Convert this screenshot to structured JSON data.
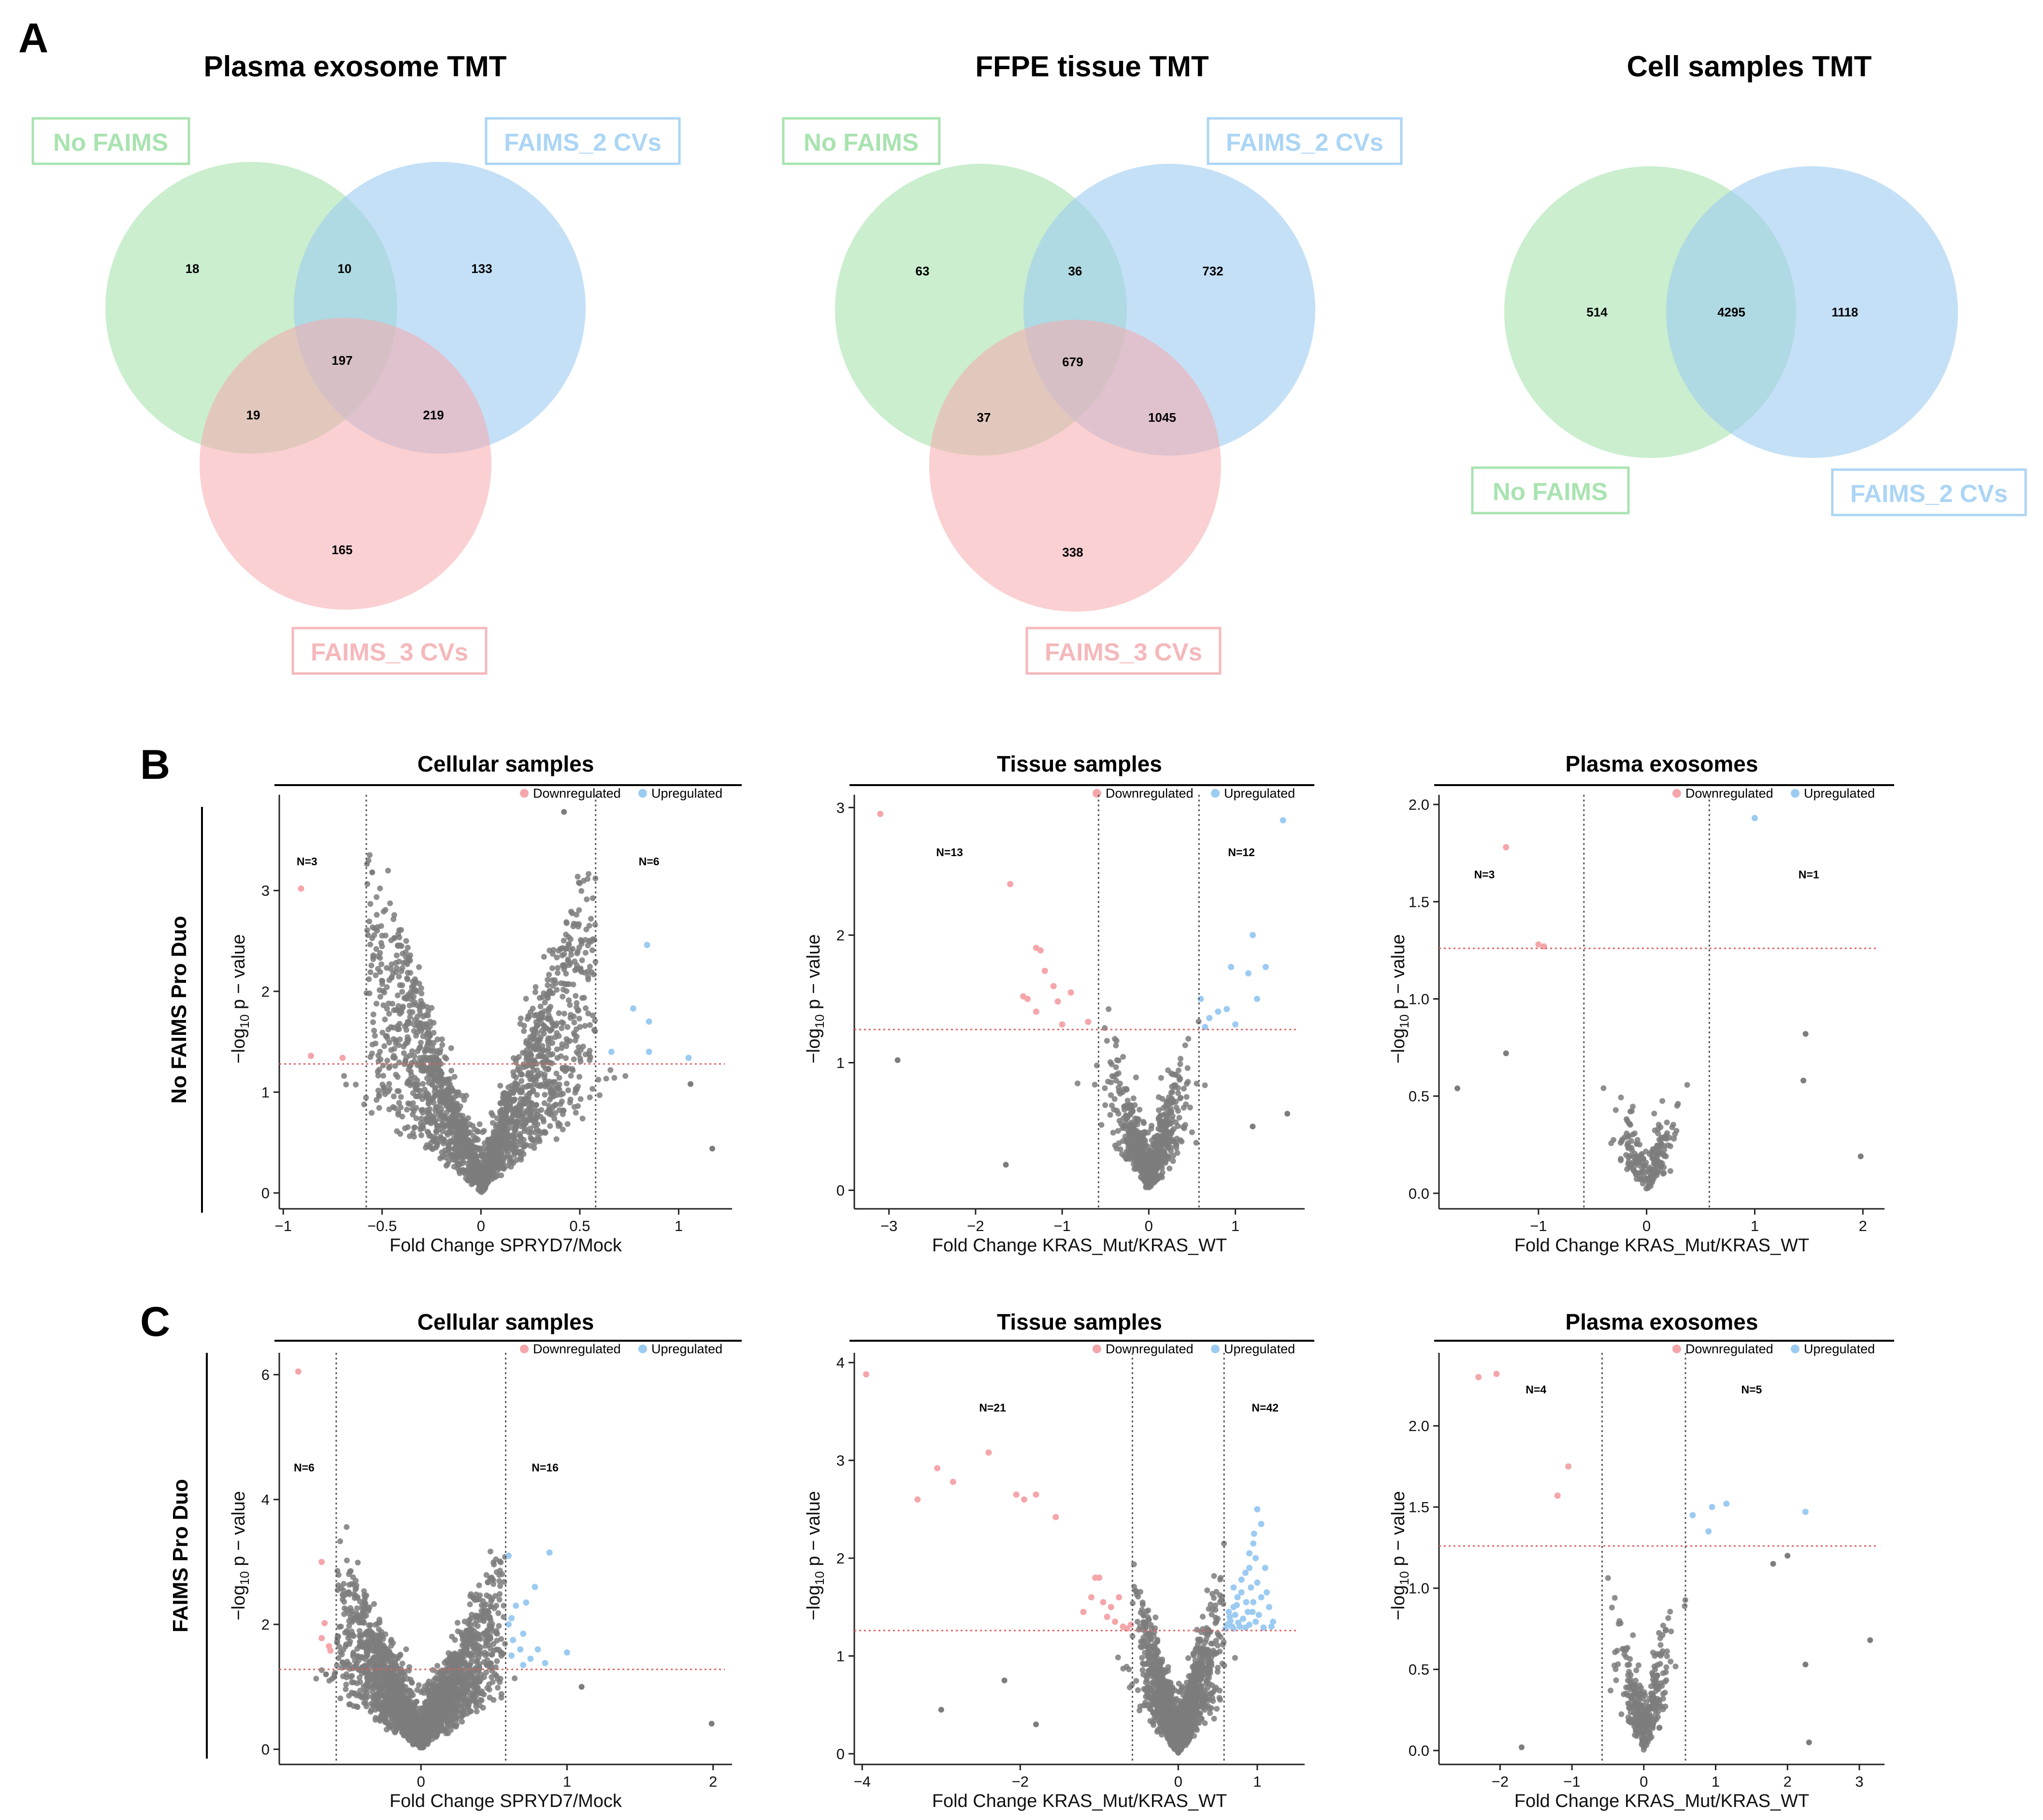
{
  "panels": {
    "A": "A",
    "B": "B",
    "C": "C"
  },
  "venn": [
    {
      "title": "Plasma exosome TMT",
      "set_labels": [
        "No FAIMS",
        "FAIMS_2 CVs",
        "FAIMS_3 CVs"
      ],
      "regions": {
        "only_a": "18",
        "ab": "10",
        "only_b": "133",
        "abc": "197",
        "ac": "19",
        "bc": "219",
        "only_c": "165"
      }
    },
    {
      "title": "FFPE tissue TMT",
      "set_labels": [
        "No FAIMS",
        "FAIMS_2 CVs",
        "FAIMS_3 CVs"
      ],
      "regions": {
        "only_a": "63",
        "ab": "36",
        "only_b": "732",
        "abc": "679",
        "ac": "37",
        "bc": "1045",
        "only_c": "338"
      }
    },
    {
      "title": "Cell samples TMT",
      "set_labels": [
        "No FAIMS",
        "FAIMS_2 CVs"
      ],
      "regions": {
        "only_a": "514",
        "ab": "4295",
        "only_b": "1118"
      }
    }
  ],
  "venn_colors": {
    "a": "#9ee0a6",
    "b": "#9ccbf2",
    "c": "#f6a9ad",
    "a_label": "#a9e3b0",
    "b_label": "#acd5f5",
    "c_label": "#f5b8bb"
  },
  "row_labels": {
    "B": "No FAIMS Pro Duo",
    "C": "FAIMS Pro Duo"
  },
  "legend": {
    "down": "Downregulated",
    "up": "Upregulated"
  },
  "y_axis_label": {
    "pre": "−log",
    "sub": "10",
    "post": " p − value"
  },
  "colors": {
    "down": "#f4a6aa",
    "up": "#9ccbf2",
    "ns": "#7d7d7d",
    "threshold": "#e06060"
  },
  "chart_data": [
    {
      "id": "B1",
      "type": "scatter",
      "title": "Cellular samples",
      "xlabel": "Fold Change SPRYD7/Mock",
      "ylabel": "−log10 p − value",
      "xlim": [
        -1.02,
        1.27
      ],
      "ylim": [
        -0.1,
        3.95
      ],
      "xticks": [
        {
          "v": -1,
          "t": "−1"
        },
        {
          "v": -0.5,
          "t": "−0.5"
        },
        {
          "v": 0,
          "t": "0"
        },
        {
          "v": 0.5,
          "t": "0.5"
        },
        {
          "v": 1,
          "t": "1"
        }
      ],
      "yticks": [
        {
          "v": 0,
          "t": "0"
        },
        {
          "v": 1,
          "t": "1"
        },
        {
          "v": 2,
          "t": "2"
        },
        {
          "v": 3,
          "t": "3"
        }
      ],
      "fc_cut": [
        -0.58,
        0.58
      ],
      "p_cut": 1.28,
      "down_label": {
        "text": "N=3",
        "x": -0.88,
        "y": 3.25
      },
      "up_label": {
        "text": "N=6",
        "x": 0.85,
        "y": 3.25
      },
      "ns": {
        "count": 2200,
        "k": 5.5,
        "spread": 0.35,
        "xmax": 1.2,
        "ymax": 3.8
      },
      "down_points": [
        [
          -0.91,
          3.02
        ],
        [
          -0.86,
          1.36
        ],
        [
          -0.7,
          1.34
        ]
      ],
      "up_points": [
        [
          0.84,
          2.46
        ],
        [
          0.77,
          1.83
        ],
        [
          0.85,
          1.7
        ],
        [
          0.85,
          1.4
        ],
        [
          0.66,
          1.4
        ],
        [
          1.05,
          1.34
        ]
      ],
      "extra_ns": [
        [
          1.17,
          0.44
        ],
        [
          1.06,
          1.08
        ],
        [
          -0.55,
          3.18
        ],
        [
          0.42,
          3.78
        ]
      ]
    },
    {
      "id": "B2",
      "type": "scatter",
      "title": "Tissue samples",
      "xlabel": "Fold Change KRAS_Mut/KRAS_WT",
      "ylabel": "−log10 p − value",
      "xlim": [
        -3.4,
        1.8
      ],
      "ylim": [
        -0.1,
        3.1
      ],
      "xticks": [
        {
          "v": -3,
          "t": "−3"
        },
        {
          "v": -2,
          "t": "−2"
        },
        {
          "v": -1,
          "t": "−1"
        },
        {
          "v": 0,
          "t": "0"
        },
        {
          "v": 1,
          "t": "1"
        }
      ],
      "yticks": [
        {
          "v": 0,
          "t": "0"
        },
        {
          "v": 1,
          "t": "1"
        },
        {
          "v": 2,
          "t": "2"
        },
        {
          "v": 3,
          "t": "3"
        }
      ],
      "fc_cut": [
        -0.58,
        0.58
      ],
      "p_cut": 1.26,
      "down_label": {
        "text": "N=13",
        "x": -2.3,
        "y": 2.62
      },
      "up_label": {
        "text": "N=12",
        "x": 1.07,
        "y": 2.62
      },
      "ns": {
        "count": 700,
        "k": 2.4,
        "spread": 0.2,
        "xmax": 1.7,
        "ymax": 2.4
      },
      "down_points": [
        [
          -3.1,
          2.95
        ],
        [
          -1.6,
          2.4
        ],
        [
          -1.3,
          1.9
        ],
        [
          -1.25,
          1.88
        ],
        [
          -1.2,
          1.72
        ],
        [
          -1.1,
          1.6
        ],
        [
          -1.45,
          1.52
        ],
        [
          -1.4,
          1.5
        ],
        [
          -0.9,
          1.55
        ],
        [
          -1.05,
          1.48
        ],
        [
          -1.3,
          1.4
        ],
        [
          -0.7,
          1.32
        ],
        [
          -1.0,
          1.3
        ]
      ],
      "up_points": [
        [
          1.55,
          2.9
        ],
        [
          1.2,
          2.0
        ],
        [
          1.35,
          1.75
        ],
        [
          0.95,
          1.75
        ],
        [
          1.15,
          1.7
        ],
        [
          0.6,
          1.5
        ],
        [
          0.8,
          1.4
        ],
        [
          0.7,
          1.35
        ],
        [
          1.0,
          1.3
        ],
        [
          0.9,
          1.42
        ],
        [
          1.25,
          1.5
        ],
        [
          0.65,
          1.28
        ]
      ],
      "extra_ns": [
        [
          -2.9,
          1.02
        ],
        [
          -1.65,
          0.2
        ],
        [
          1.6,
          0.6
        ],
        [
          1.2,
          0.5
        ]
      ]
    },
    {
      "id": "B3",
      "type": "scatter",
      "title": "Plasma exosomes",
      "xlabel": "Fold Change KRAS_Mut/KRAS_WT",
      "ylabel": "−log10 p − value",
      "xlim": [
        -1.92,
        2.2
      ],
      "ylim": [
        -0.05,
        2.05
      ],
      "xticks": [
        {
          "v": -1,
          "t": "−1"
        },
        {
          "v": 0,
          "t": "0"
        },
        {
          "v": 1,
          "t": "1"
        },
        {
          "v": 2,
          "t": "2"
        }
      ],
      "yticks": [
        {
          "v": 0,
          "t": "0.0"
        },
        {
          "v": 0.5,
          "t": "0.5"
        },
        {
          "v": 1,
          "t": "1.0"
        },
        {
          "v": 1.5,
          "t": "1.5"
        },
        {
          "v": 2,
          "t": "2.0"
        }
      ],
      "fc_cut": [
        -0.58,
        0.58
      ],
      "p_cut": 1.26,
      "down_label": {
        "text": "N=3",
        "x": -1.5,
        "y": 1.62
      },
      "up_label": {
        "text": "N=1",
        "x": 1.5,
        "y": 1.62
      },
      "ns": {
        "count": 190,
        "k": 1.5,
        "spread": 0.14,
        "xmax": 1.5,
        "ymax": 1.2
      },
      "down_points": [
        [
          -1.3,
          1.78
        ],
        [
          -1.0,
          1.28
        ],
        [
          -0.95,
          1.27
        ]
      ],
      "up_points": [
        [
          1.0,
          1.93
        ]
      ],
      "extra_ns": [
        [
          -1.75,
          0.54
        ],
        [
          1.98,
          0.19
        ],
        [
          1.47,
          0.82
        ],
        [
          1.45,
          0.58
        ],
        [
          -1.3,
          0.72
        ]
      ]
    },
    {
      "id": "C1",
      "type": "scatter",
      "title": "Cellular samples",
      "xlabel": "Fold Change SPRYD7/Mock",
      "ylabel": "−log10 p − value",
      "xlim": [
        -0.97,
        2.13
      ],
      "ylim": [
        -0.15,
        6.35
      ],
      "xticks": [
        {
          "v": 0,
          "t": "0"
        },
        {
          "v": 1,
          "t": "1"
        },
        {
          "v": 2,
          "t": "2"
        }
      ],
      "yticks": [
        {
          "v": 0,
          "t": "0"
        },
        {
          "v": 2,
          "t": "2"
        },
        {
          "v": 4,
          "t": "4"
        },
        {
          "v": 6,
          "t": "6"
        }
      ],
      "fc_cut": [
        -0.58,
        0.58
      ],
      "p_cut": 1.28,
      "down_label": {
        "text": "N=6",
        "x": -0.8,
        "y": 4.45
      },
      "up_label": {
        "text": "N=16",
        "x": 0.85,
        "y": 4.45
      },
      "ns": {
        "count": 2400,
        "k": 5.0,
        "spread": 0.3,
        "xmax": 1.3,
        "ymax": 4.2
      },
      "down_points": [
        [
          -0.84,
          6.05
        ],
        [
          -0.68,
          3.0
        ],
        [
          -0.66,
          2.02
        ],
        [
          -0.68,
          1.78
        ],
        [
          -0.63,
          1.65
        ],
        [
          -0.62,
          1.58
        ]
      ],
      "up_points": [
        [
          0.88,
          3.15
        ],
        [
          0.6,
          3.1
        ],
        [
          0.72,
          2.35
        ],
        [
          0.65,
          2.3
        ],
        [
          0.62,
          2.1
        ],
        [
          0.6,
          2.0
        ],
        [
          0.7,
          1.85
        ],
        [
          0.63,
          1.75
        ],
        [
          0.8,
          1.6
        ],
        [
          0.68,
          1.6
        ],
        [
          0.75,
          1.45
        ],
        [
          1.0,
          1.55
        ],
        [
          0.62,
          1.5
        ],
        [
          0.85,
          1.38
        ],
        [
          0.7,
          1.35
        ],
        [
          0.78,
          2.6
        ]
      ],
      "extra_ns": [
        [
          1.99,
          0.41
        ],
        [
          1.1,
          1.0
        ],
        [
          -0.65,
          1.2
        ]
      ]
    },
    {
      "id": "C2",
      "type": "scatter",
      "title": "Tissue samples",
      "xlabel": "Fold Change KRAS_Mut/KRAS_WT",
      "ylabel": "−log10 p − value",
      "xlim": [
        -4.1,
        1.6
      ],
      "ylim": [
        -0.05,
        4.1
      ],
      "xticks": [
        {
          "v": -4,
          "t": "−4"
        },
        {
          "v": -2,
          "t": "−2"
        },
        {
          "v": 0,
          "t": "0"
        },
        {
          "v": 1,
          "t": "1"
        }
      ],
      "yticks": [
        {
          "v": 0,
          "t": "0"
        },
        {
          "v": 1,
          "t": "1"
        },
        {
          "v": 2,
          "t": "2"
        },
        {
          "v": 3,
          "t": "3"
        },
        {
          "v": 4,
          "t": "4"
        }
      ],
      "fc_cut": [
        -0.58,
        0.58
      ],
      "p_cut": 1.26,
      "down_label": {
        "text": "N=21",
        "x": -2.35,
        "y": 3.5
      },
      "up_label": {
        "text": "N=42",
        "x": 1.1,
        "y": 3.5
      },
      "ns": {
        "count": 1800,
        "k": 3.0,
        "spread": 0.22,
        "xmax": 1.5,
        "ymax": 2.6
      },
      "down_points": [
        [
          -3.95,
          3.88
        ],
        [
          -2.4,
          3.08
        ],
        [
          -3.05,
          2.92
        ],
        [
          -2.85,
          2.78
        ],
        [
          -3.3,
          2.6
        ],
        [
          -2.05,
          2.65
        ],
        [
          -1.95,
          2.6
        ],
        [
          -1.8,
          2.65
        ],
        [
          -1.55,
          2.42
        ],
        [
          -1.05,
          1.8
        ],
        [
          -1.0,
          1.8
        ],
        [
          -1.1,
          1.6
        ],
        [
          -0.95,
          1.55
        ],
        [
          -0.75,
          1.6
        ],
        [
          -0.8,
          1.35
        ],
        [
          -0.7,
          1.3
        ],
        [
          -0.65,
          1.28
        ],
        [
          -1.2,
          1.45
        ],
        [
          -0.9,
          1.4
        ],
        [
          -0.85,
          1.5
        ],
        [
          -0.6,
          1.32
        ]
      ],
      "up_points": [
        [
          1.0,
          2.5
        ],
        [
          1.05,
          2.35
        ],
        [
          0.95,
          2.15
        ],
        [
          0.98,
          2.0
        ],
        [
          0.9,
          2.05
        ],
        [
          1.1,
          1.9
        ],
        [
          0.85,
          1.85
        ],
        [
          0.92,
          1.7
        ],
        [
          1.0,
          1.75
        ],
        [
          0.8,
          1.65
        ],
        [
          1.05,
          1.6
        ],
        [
          0.75,
          1.6
        ],
        [
          0.95,
          1.55
        ],
        [
          0.7,
          1.5
        ],
        [
          0.88,
          1.45
        ],
        [
          1.15,
          1.5
        ],
        [
          0.65,
          1.4
        ],
        [
          0.72,
          1.42
        ],
        [
          0.82,
          1.38
        ],
        [
          0.98,
          1.35
        ],
        [
          0.62,
          1.32
        ],
        [
          0.68,
          1.3
        ],
        [
          0.78,
          1.3
        ],
        [
          0.9,
          1.32
        ],
        [
          1.2,
          1.35
        ],
        [
          0.6,
          1.28
        ],
        [
          0.7,
          1.28
        ],
        [
          0.85,
          1.29
        ],
        [
          1.08,
          1.29
        ],
        [
          0.66,
          1.36
        ],
        [
          0.76,
          1.34
        ],
        [
          0.86,
          1.55
        ],
        [
          0.94,
          1.45
        ],
        [
          1.02,
          1.42
        ],
        [
          0.64,
          1.45
        ],
        [
          0.74,
          1.52
        ],
        [
          0.8,
          1.78
        ],
        [
          0.9,
          1.9
        ],
        [
          1.12,
          1.65
        ],
        [
          0.96,
          2.25
        ],
        [
          1.18,
          1.3
        ],
        [
          0.7,
          1.7
        ]
      ],
      "extra_ns": [
        [
          -2.2,
          0.75
        ],
        [
          -1.8,
          0.3
        ],
        [
          -3.0,
          0.45
        ]
      ]
    },
    {
      "id": "C3",
      "type": "scatter",
      "title": "Plasma exosomes",
      "xlabel": "Fold Change KRAS_Mut/KRAS_WT",
      "ylabel": "−log10 p − value",
      "xlim": [
        -2.85,
        3.35
      ],
      "ylim": [
        -0.05,
        2.45
      ],
      "xticks": [
        {
          "v": -2,
          "t": "−2"
        },
        {
          "v": -1,
          "t": "−1"
        },
        {
          "v": 0,
          "t": "0"
        },
        {
          "v": 1,
          "t": "1"
        },
        {
          "v": 2,
          "t": "2"
        },
        {
          "v": 3,
          "t": "3"
        }
      ],
      "yticks": [
        {
          "v": 0,
          "t": "0.0"
        },
        {
          "v": 0.5,
          "t": "0.5"
        },
        {
          "v": 1,
          "t": "1.0"
        },
        {
          "v": 1.5,
          "t": "1.5"
        },
        {
          "v": 2,
          "t": "2.0"
        }
      ],
      "fc_cut": [
        -0.58,
        0.58
      ],
      "p_cut": 1.26,
      "down_label": {
        "text": "N=4",
        "x": -1.5,
        "y": 2.2
      },
      "up_label": {
        "text": "N=5",
        "x": 1.5,
        "y": 2.2
      },
      "ns": {
        "count": 340,
        "k": 2.2,
        "spread": 0.17,
        "xmax": 2.0,
        "ymax": 1.45
      },
      "down_points": [
        [
          -2.05,
          2.32
        ],
        [
          -2.3,
          2.3
        ],
        [
          -1.05,
          1.75
        ],
        [
          -1.2,
          1.57
        ]
      ],
      "up_points": [
        [
          1.15,
          1.52
        ],
        [
          0.95,
          1.5
        ],
        [
          2.25,
          1.47
        ],
        [
          0.68,
          1.45
        ],
        [
          0.9,
          1.35
        ]
      ],
      "extra_ns": [
        [
          3.15,
          0.68
        ],
        [
          2.3,
          0.05
        ],
        [
          2.25,
          0.53
        ],
        [
          -1.7,
          0.02
        ],
        [
          2.0,
          1.2
        ],
        [
          1.8,
          1.15
        ]
      ]
    }
  ]
}
